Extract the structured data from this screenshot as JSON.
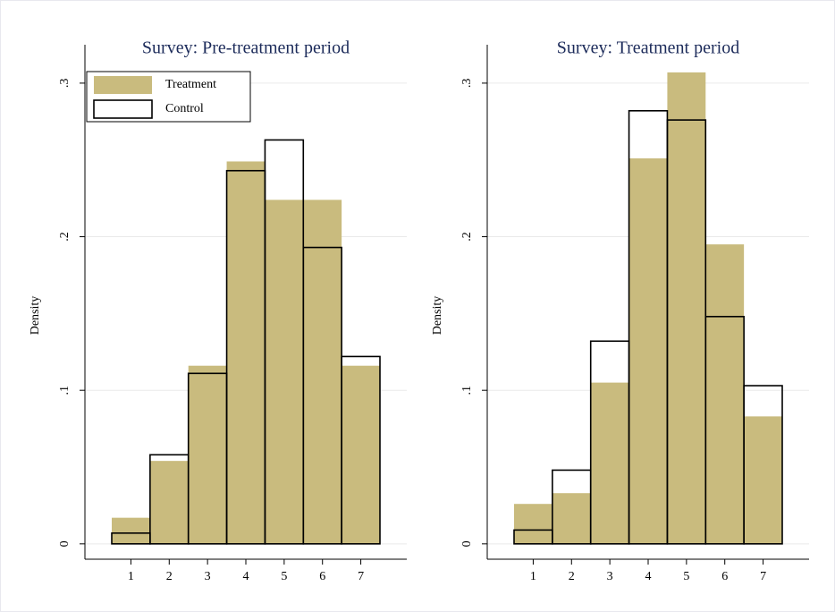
{
  "chart_data": [
    {
      "type": "histogram",
      "title": "Survey: Pre-treatment period",
      "y_label": "Density",
      "bins": [
        0.5,
        1.5,
        2.5,
        3.5,
        4.5,
        5.5,
        6.5,
        7.5
      ],
      "series": [
        {
          "name": "Treatment",
          "color": "#c9bb7e",
          "style": "filled",
          "values": [
            0.017,
            0.054,
            0.116,
            0.249,
            0.224,
            0.224,
            0.116
          ]
        },
        {
          "name": "Control",
          "color": "#000000",
          "style": "outline",
          "values": [
            0.007,
            0.058,
            0.111,
            0.243,
            0.263,
            0.193,
            0.122
          ]
        }
      ],
      "xlim": [
        -0.2,
        8.2
      ],
      "xticks": [
        1,
        2,
        3,
        4,
        5,
        6,
        7
      ],
      "ylim": [
        -0.01,
        0.325
      ],
      "yticks": [
        0,
        {
          "value": 0.1,
          "label": ".1"
        },
        {
          "value": 0.2,
          "label": ".2"
        },
        {
          "value": 0.3,
          "label": ".3"
        }
      ],
      "grid": true,
      "legend": "top-left"
    },
    {
      "type": "histogram",
      "title": "Survey: Treatment period",
      "y_label": "Density",
      "bins": [
        0.5,
        1.5,
        2.5,
        3.5,
        4.5,
        5.5,
        6.5,
        7.5
      ],
      "series": [
        {
          "color": "#c9bb7e",
          "style": "filled",
          "values": [
            0.026,
            0.033,
            0.105,
            0.251,
            0.307,
            0.195,
            0.083
          ]
        },
        {
          "color": "#000000",
          "style": "outline",
          "values": [
            0.009,
            0.048,
            0.132,
            0.282,
            0.276,
            0.148,
            0.103
          ]
        }
      ],
      "xlim": [
        -0.2,
        8.2
      ],
      "xticks": [
        1,
        2,
        3,
        4,
        5,
        6,
        7
      ],
      "ylim": [
        -0.01,
        0.325
      ],
      "yticks": [
        0,
        {
          "value": 0.1,
          "label": ".1"
        },
        {
          "value": 0.2,
          "label": ".2"
        },
        {
          "value": 0.3,
          "label": ".3"
        }
      ],
      "grid": true
    }
  ]
}
